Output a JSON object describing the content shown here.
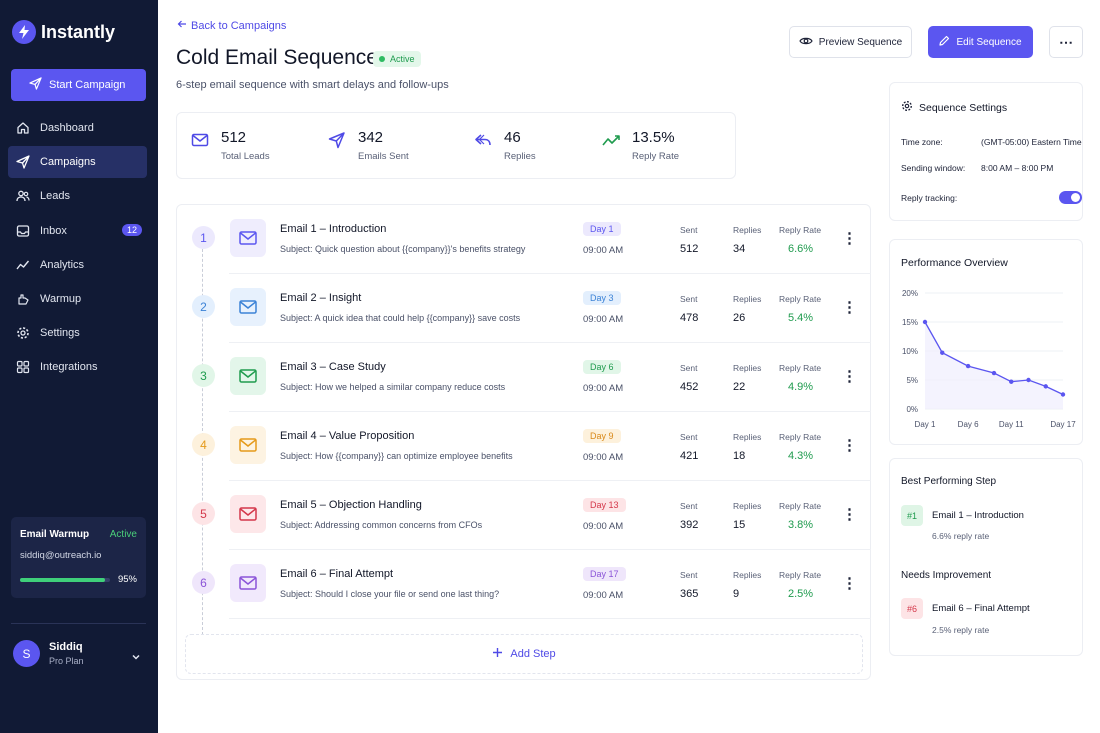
{
  "app": {
    "name": "Instantly"
  },
  "colors": {
    "accent": "#5b56f0",
    "sidebar_bg": "#111a35",
    "positive": "#1f9b4e"
  },
  "sidebar": {
    "start_label": "Start Campaign",
    "items": [
      {
        "label": "Dashboard",
        "icon": "home-icon"
      },
      {
        "label": "Campaigns",
        "icon": "paper-plane-icon",
        "active": true
      },
      {
        "label": "Leads",
        "icon": "users-icon"
      },
      {
        "label": "Inbox",
        "icon": "inbox-icon",
        "badge": "12"
      },
      {
        "label": "Analytics",
        "icon": "analytics-icon"
      },
      {
        "label": "Warmup",
        "icon": "hand-icon"
      },
      {
        "label": "Settings",
        "icon": "gear-icon"
      },
      {
        "label": "Integrations",
        "icon": "puzzle-icon"
      }
    ],
    "warmup": {
      "title": "Email Warmup",
      "status": "Active",
      "email": "siddiq@outreach.io",
      "progress_pct": 95,
      "progress_label": "95%"
    },
    "user": {
      "initial": "S",
      "name": "Siddiq",
      "plan": "Pro Plan"
    }
  },
  "header": {
    "back_label": "Back to Campaigns",
    "title": "Cold Email Sequence",
    "status": "Active",
    "subtitle": "6-step email sequence with smart delays and follow-ups",
    "preview_label": "Preview Sequence",
    "edit_label": "Edit Sequence",
    "more_label": "⋯"
  },
  "stats": [
    {
      "value": "512",
      "label": "Total Leads",
      "icon": "mail-icon"
    },
    {
      "value": "342",
      "label": "Emails Sent",
      "icon": "send-icon"
    },
    {
      "value": "46",
      "label": "Replies",
      "icon": "reply-icon"
    },
    {
      "value": "13.5%",
      "label": "Reply Rate",
      "icon": "trend-icon"
    }
  ],
  "steps": {
    "metric_labels": {
      "sent": "Sent",
      "replies": "Replies",
      "rate": "Reply Rate"
    },
    "items": [
      {
        "num": "1",
        "title": "Email 1 – Introduction",
        "subject": "Quick question about {{company}}'s benefits strategy",
        "day": "Day 1",
        "time": "09:00 AM",
        "sent": "512",
        "replies": "34",
        "rate": "6.6%",
        "theme": "purple"
      },
      {
        "num": "2",
        "title": "Email 2 – Insight",
        "subject": "A quick idea that could help {{company}} save costs",
        "day": "Day 3",
        "time": "09:00 AM",
        "sent": "478",
        "replies": "26",
        "rate": "5.4%",
        "theme": "blue"
      },
      {
        "num": "3",
        "title": "Email 3 – Case Study",
        "subject": "How we helped a similar company reduce costs",
        "day": "Day 6",
        "time": "09:00 AM",
        "sent": "452",
        "replies": "22",
        "rate": "4.9%",
        "theme": "green"
      },
      {
        "num": "4",
        "title": "Email 4 – Value Proposition",
        "subject": "How {{company}} can optimize employee benefits",
        "day": "Day 9",
        "time": "09:00 AM",
        "sent": "421",
        "replies": "18",
        "rate": "4.3%",
        "theme": "amber"
      },
      {
        "num": "5",
        "title": "Email 5 – Objection Handling",
        "subject": "Addressing common concerns from CFOs",
        "day": "Day 13",
        "time": "09:00 AM",
        "sent": "392",
        "replies": "15",
        "rate": "3.8%",
        "theme": "red"
      },
      {
        "num": "6",
        "title": "Email 6 – Final Attempt",
        "subject": "Should I close your file or send one last thing?",
        "day": "Day 17",
        "time": "09:00 AM",
        "sent": "365",
        "replies": "9",
        "rate": "2.5%",
        "theme": "violet"
      }
    ],
    "subject_prefix": "Subject:",
    "add_label": "Add Step"
  },
  "settings": {
    "title": "Sequence Settings",
    "timezone_label": "Time zone:",
    "timezone_value": "(GMT-05:00) Eastern Time",
    "window_label": "Sending window:",
    "window_value": "8:00 AM – 8:00 PM",
    "tracking_label": "Reply tracking:",
    "tracking_on": true
  },
  "performance": {
    "title": "Performance Overview"
  },
  "chart_data": {
    "type": "line",
    "title": "Performance Overview",
    "x": [
      1,
      3,
      6,
      9,
      11,
      13,
      15,
      17
    ],
    "x_ticks": [
      1,
      6,
      11,
      17
    ],
    "x_tick_labels": [
      "Day 1",
      "Day 6",
      "Day 11",
      "Day 17"
    ],
    "values": [
      15,
      9.7,
      7.4,
      6.2,
      4.7,
      5.0,
      3.9,
      2.5
    ],
    "ylim": [
      0,
      20
    ],
    "y_ticks": [
      0,
      5,
      10,
      15,
      20
    ],
    "y_tick_labels": [
      "0%",
      "5%",
      "10%",
      "15%",
      "20%"
    ],
    "color": "#5b56f0",
    "grid": true
  },
  "best": {
    "best_heading": "Best Performing Step",
    "best_rank": "#1",
    "best_title": "Email 1 – Introduction",
    "best_sub": "6.6% reply rate",
    "needs_heading": "Needs Improvement",
    "needs_rank": "#6",
    "needs_title": "Email 6 – Final Attempt",
    "needs_sub": "2.5% reply rate"
  }
}
